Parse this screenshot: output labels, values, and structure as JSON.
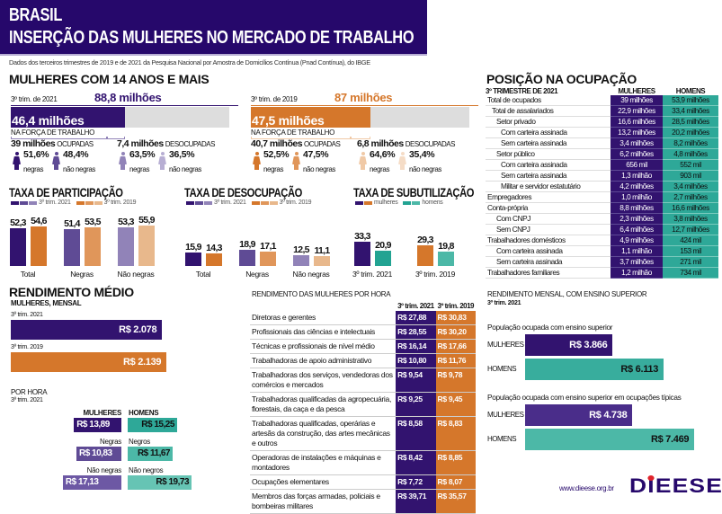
{
  "header": {
    "line1": "BRASIL",
    "line2": "INSERÇÃO DAS MULHERES NO MERCADO DE TRABALHO",
    "source": "Dados dos terceiros trimestres de 2019 e de 2021 da Pesquisa Nacional por Amostra de Domicílios Contínua (Pnad Contínua), do IBGE"
  },
  "colors": {
    "purple": "#32136f",
    "orange": "#d5772b",
    "teal": "#2ea898",
    "header": "#26086b"
  },
  "overview": {
    "title": "MULHERES COM 14 ANOS E MAIS",
    "blocks": [
      {
        "period": "3º trim. de 2021",
        "total": "88,8 milhões",
        "force": "46,4 milhões",
        "force_share": 0.523,
        "force_label": "NA FORÇA DE TRABALHO",
        "occupied": {
          "value": "39 milhões",
          "label": "OCUPADAS",
          "negras": "51,6%",
          "nao_negras": "48,4%"
        },
        "unoccupied": {
          "value": "7,4 milhões",
          "label": "DESOCUPADAS",
          "negras": "63,5%",
          "nao_negras": "36,5%"
        },
        "colors": [
          "#32136f",
          "#5f4b95",
          "#9183b8",
          "#b7aed3"
        ]
      },
      {
        "period": "3º trim. de 2019",
        "total": "87 milhões",
        "force": "47,5 milhões",
        "force_share": 0.546,
        "force_label": "NA FORÇA DE TRABALHO",
        "occupied": {
          "value": "40,7 milhões",
          "label": "OCUPADAS",
          "negras": "52,5%",
          "nao_negras": "47,5%"
        },
        "unoccupied": {
          "value": "6,8 milhões",
          "label": "DESOCUPADAS",
          "negras": "64,6%",
          "nao_negras": "35,4%"
        },
        "colors": [
          "#d5772b",
          "#e0965a",
          "#f0c9a6",
          "#f5dcc6"
        ]
      }
    ],
    "negras_label": "negras",
    "nao_negras_label": "não negras"
  },
  "chart_data": [
    {
      "type": "bar",
      "title": "TAXA DE PARTICIPAÇÃO",
      "categories": [
        "Total",
        "Negras",
        "Não negras"
      ],
      "legend": [
        "3º trim. 2021",
        "3º trim. 2019"
      ],
      "series": [
        {
          "name": "3º trim. 2021",
          "values": [
            52.3,
            51.4,
            53.3
          ],
          "labels": [
            "52,3",
            "51,4",
            "53,3"
          ],
          "colors": [
            "#32136f",
            "#5f4b95",
            "#9183b8"
          ]
        },
        {
          "name": "3º trim. 2019",
          "values": [
            54.6,
            53.5,
            55.9
          ],
          "labels": [
            "54,6",
            "53,5",
            "55,9"
          ],
          "colors": [
            "#d5772b",
            "#e0965a",
            "#e8b88c"
          ]
        }
      ]
    },
    {
      "type": "bar",
      "title": "TAXA DE DESOCUPAÇÃO",
      "categories": [
        "Total",
        "Negras",
        "Não negras"
      ],
      "legend": [
        "3º trim. 2021",
        "3º trim. 2019"
      ],
      "series": [
        {
          "name": "3º trim. 2021",
          "values": [
            15.9,
            18.9,
            12.5
          ],
          "labels": [
            "15,9",
            "18,9",
            "12,5"
          ],
          "colors": [
            "#32136f",
            "#5f4b95",
            "#9183b8"
          ]
        },
        {
          "name": "3º trim. 2019",
          "values": [
            14.3,
            17.1,
            11.1
          ],
          "labels": [
            "14,3",
            "17,1",
            "11,1"
          ],
          "colors": [
            "#d5772b",
            "#e0965a",
            "#e8b88c"
          ]
        }
      ]
    },
    {
      "type": "bar",
      "title": "TAXA DE SUBUTILIZAÇÃO",
      "categories": [
        "3º trim. 2021",
        "3º trim. 2019"
      ],
      "legend": [
        "mulheres",
        "homens"
      ],
      "series": [
        {
          "name": "mulheres",
          "values": [
            33.3,
            29.3
          ],
          "labels": [
            "33,3",
            "29,3"
          ],
          "colors": [
            "#32136f",
            "#d5772b"
          ]
        },
        {
          "name": "homens",
          "values": [
            20.9,
            19.8
          ],
          "labels": [
            "20,9",
            "19,8"
          ],
          "colors": [
            "#22a392",
            "#4cb8a7"
          ]
        }
      ]
    },
    {
      "type": "bar",
      "title": "RENDIMENTO MÉDIO",
      "subtitle": "MULHERES, MENSAL",
      "orientation": "horizontal",
      "categories": [
        "3º trim. 2021",
        "3º trim. 2019"
      ],
      "values": [
        2078,
        2139
      ],
      "labels": [
        "R$ 2.078",
        "R$ 2.139"
      ],
      "colors": [
        "#32136f",
        "#d5772b"
      ]
    },
    {
      "type": "bar",
      "title": "POR HORA",
      "subtitle": "3º trim. 2021",
      "orientation": "horizontal-diverging",
      "groups": [
        {
          "women_label": "MULHERES",
          "men_label": "HOMENS",
          "women": 13.89,
          "men": 15.25,
          "women_text": "R$ 13,89",
          "men_text": "R$ 15,25",
          "women_color": "#32136f",
          "men_color": "#2ea898"
        },
        {
          "women_label": "Negras",
          "men_label": "Negros",
          "women": 10.83,
          "men": 11.67,
          "women_text": "R$ 10,83",
          "men_text": "R$ 11,67",
          "women_color": "#5f4b95",
          "men_color": "#4cb8a7"
        },
        {
          "women_label": "Não negras",
          "men_label": "Não negros",
          "women": 17.13,
          "men": 19.73,
          "women_text": "R$ 17,13",
          "men_text": "R$ 19,73",
          "women_color": "#6d58a4",
          "men_color": "#66c4b4"
        }
      ]
    },
    {
      "type": "bar",
      "title": "RENDIMENTO MENSAL, COM ENSINO SUPERIOR",
      "subtitle": "3º trim. 2021",
      "orientation": "horizontal",
      "panels": [
        {
          "caption": "População ocupada com ensino superior",
          "categories": [
            "MULHERES",
            "HOMENS"
          ],
          "values": [
            3866,
            6113
          ],
          "labels": [
            "R$ 3.866",
            "R$ 6.113"
          ],
          "colors": [
            "#32136f",
            "#38ad9d"
          ]
        },
        {
          "caption": "População ocupada com ensino superior em ocupações típicas",
          "categories": [
            "MULHERES",
            "HOMENS"
          ],
          "values": [
            4738,
            7469
          ],
          "labels": [
            "R$ 4.738",
            "R$ 7.469"
          ],
          "colors": [
            "#4a2d8a",
            "#4cb8a7"
          ]
        }
      ]
    }
  ],
  "hourly": {
    "title": "RENDIMENTO DAS MULHERES POR HORA",
    "col1": "3º trim. 2021",
    "col2": "3º trim. 2019",
    "rows": [
      {
        "label": "Diretoras e gerentes",
        "v2021": "R$ 27,88",
        "v2019": "R$ 30,83"
      },
      {
        "label": "Profissionais das ciências e intelectuais",
        "v2021": "R$ 28,55",
        "v2019": "R$ 30,20"
      },
      {
        "label": "Técnicas e profissionais de nível médio",
        "v2021": "R$ 16,14",
        "v2019": "R$ 17,66"
      },
      {
        "label": "Trabalhadoras de apoio administrativo",
        "v2021": "R$ 10,80",
        "v2019": "R$ 11,76"
      },
      {
        "label": "Trabalhadoras dos serviços, vendedoras dos comércios e mercados",
        "v2021": "R$ 9,54",
        "v2019": "R$ 9,78"
      },
      {
        "label": "Trabalhadoras qualificadas da agropecuária, florestais, da caça e da pesca",
        "v2021": "R$ 9,25",
        "v2019": "R$ 9,45"
      },
      {
        "label": "Trabalhadoras qualificadas, operárias e artesãs da construção, das artes mecânicas e outros",
        "v2021": "R$ 8,58",
        "v2019": "R$ 8,83"
      },
      {
        "label": "Operadoras de instalações e máquinas e montadores",
        "v2021": "R$ 8,42",
        "v2019": "R$ 8,85"
      },
      {
        "label": "Ocupações elementares",
        "v2021": "R$ 7,72",
        "v2019": "R$ 8,07"
      },
      {
        "label": "Membros das forças armadas, policiais e bombeiras militares",
        "v2021": "R$ 39,71",
        "v2019": "R$ 35,57"
      }
    ]
  },
  "position": {
    "title": "POSIÇÃO NA OCUPAÇÃO",
    "period": "3º TRIMESTRE DE 2021",
    "col_women": "MULHERES",
    "col_men": "HOMENS",
    "rows": [
      {
        "label": "Total de ocupados",
        "level": 0,
        "women": "39 milhões",
        "men": "53,9 milhões"
      },
      {
        "label": "Total de assalariados",
        "level": 1,
        "women": "22,9 milhões",
        "men": "33,4 milhões"
      },
      {
        "label": "Setor privado",
        "level": 2,
        "women": "16,6 milhões",
        "men": "28,5 milhões"
      },
      {
        "label": "Com carteira assinada",
        "level": 3,
        "women": "13,2 milhões",
        "men": "20,2 milhões"
      },
      {
        "label": "Sem carteira assinada",
        "level": 3,
        "women": "3,4 milhões",
        "men": "8,2 milhões"
      },
      {
        "label": "Setor público",
        "level": 2,
        "women": "6,2 milhões",
        "men": "4,8 milhões",
        "group": true
      },
      {
        "label": "Com carteira assinada",
        "level": 3,
        "women": "656 mil",
        "men": "552 mil"
      },
      {
        "label": "Sem carteira assinada",
        "level": 3,
        "women": "1,3 milhão",
        "men": "903 mil"
      },
      {
        "label": "Militar e servidor estatutário",
        "level": 3,
        "women": "4,2 milhões",
        "men": "3,4 milhões"
      },
      {
        "label": "Empregadores",
        "level": 0,
        "women": "1,0 milhão",
        "men": "2,7 milhões",
        "group": true
      },
      {
        "label": "Conta-própria",
        "level": 0,
        "women": "8,8 milhões",
        "men": "16,6 milhões",
        "group": true
      },
      {
        "label": "Com CNPJ",
        "level": 2,
        "women": "2,3 milhões",
        "men": "3,8 milhões"
      },
      {
        "label": "Sem CNPJ",
        "level": 2,
        "women": "6,4 milhões",
        "men": "12,7 milhões"
      },
      {
        "label": "Trabalhadores domésticos",
        "level": 0,
        "women": "4,9 milhões",
        "men": "424 mil",
        "group": true
      },
      {
        "label": "Com carteira assinada",
        "level": 2,
        "women": "1,1 milhão",
        "men": "153 mil"
      },
      {
        "label": "Sem carteira assinada",
        "level": 2,
        "women": "3,7 milhões",
        "men": "271 mil"
      },
      {
        "label": "Trabalhadores familiares",
        "level": 0,
        "women": "1,2 milhão",
        "men": "734 mil",
        "group": true
      }
    ]
  },
  "footer": {
    "url": "www.dieese.org.br",
    "logo": "DIEESE"
  }
}
